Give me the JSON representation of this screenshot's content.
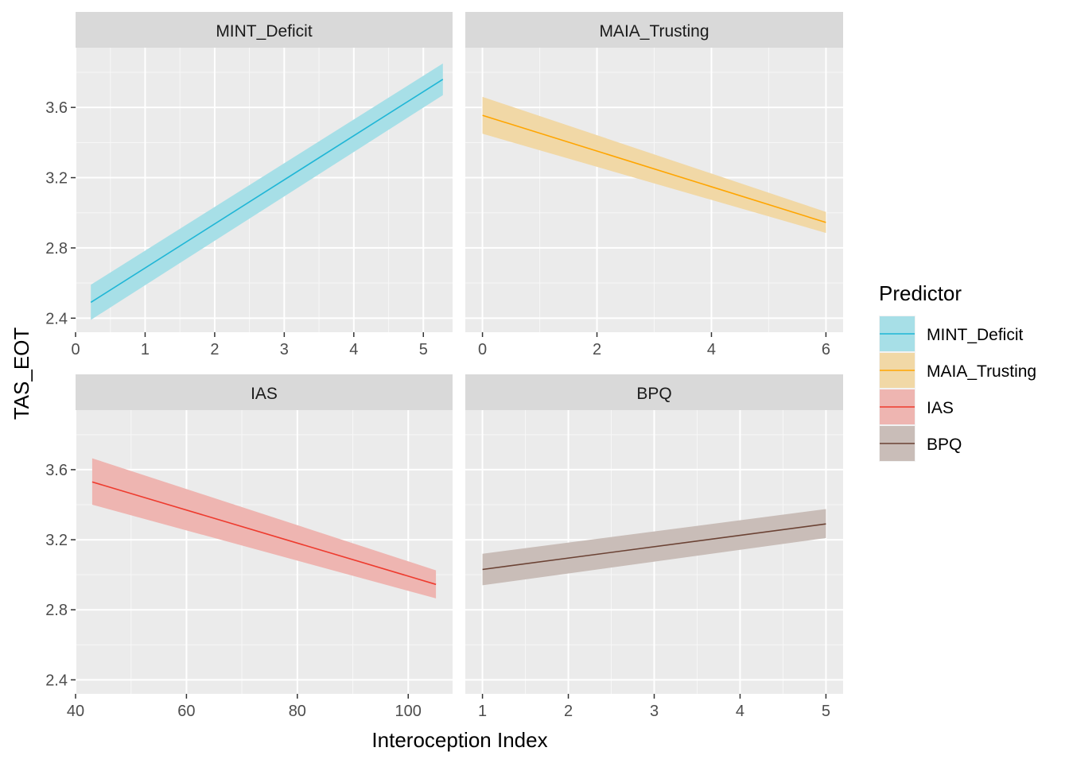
{
  "chart_data": {
    "type": "line",
    "xlabel": "Interoception Index",
    "ylabel": "TAS_EOT",
    "legend": {
      "title": "Predictor",
      "position": "right",
      "entries": [
        {
          "label": "MINT_Deficit",
          "line_color": "#1FB6D6",
          "fill_color": "#A7DFE7"
        },
        {
          "label": "MAIA_Trusting",
          "line_color": "#FFA500",
          "fill_color": "#F1D8A6"
        },
        {
          "label": "IAS",
          "line_color": "#EE3B2E",
          "fill_color": "#EEB5B1"
        },
        {
          "label": "BPQ",
          "line_color": "#6B4234",
          "fill_color": "#C9BDB8"
        }
      ]
    },
    "grid": true,
    "shared_y": {
      "ylim": [
        2.32,
        3.94
      ],
      "ticks": [
        "2.4",
        "2.8",
        "3.2",
        "3.6"
      ],
      "tick_values": [
        2.4,
        2.8,
        3.2,
        3.6
      ]
    },
    "panels": [
      {
        "strip": "MINT_Deficit",
        "color_index": 0,
        "xlim": [
          0,
          5.42
        ],
        "x_ticks": [
          0,
          1,
          2,
          3,
          4,
          5
        ],
        "x_tick_labels": [
          "0",
          "1",
          "2",
          "3",
          "4",
          "5"
        ],
        "x": [
          0.22,
          5.28
        ],
        "y": [
          2.49,
          3.76
        ],
        "ci_lower": [
          2.39,
          3.67
        ],
        "ci_upper": [
          2.59,
          3.85
        ]
      },
      {
        "strip": "MAIA_Trusting",
        "color_index": 1,
        "xlim": [
          -0.3,
          6.3
        ],
        "x_ticks": [
          0,
          2,
          4,
          6
        ],
        "x_tick_labels": [
          "0",
          "2",
          "4",
          "6"
        ],
        "x": [
          0,
          6
        ],
        "y": [
          3.555,
          2.945
        ],
        "ci_lower": [
          3.45,
          2.885
        ],
        "ci_upper": [
          3.66,
          3.005
        ]
      },
      {
        "strip": "IAS",
        "color_index": 2,
        "xlim": [
          40,
          108
        ],
        "x_ticks": [
          40,
          60,
          80,
          100
        ],
        "x_tick_labels": [
          "40",
          "60",
          "80",
          "100"
        ],
        "x": [
          43,
          105
        ],
        "y": [
          3.53,
          2.945
        ],
        "ci_lower": [
          3.4,
          2.865
        ],
        "ci_upper": [
          3.665,
          3.025
        ]
      },
      {
        "strip": "BPQ",
        "color_index": 3,
        "xlim": [
          0.8,
          5.2
        ],
        "x_ticks": [
          1,
          2,
          3,
          4,
          5
        ],
        "x_tick_labels": [
          "1",
          "2",
          "3",
          "4",
          "5"
        ],
        "x": [
          1,
          5
        ],
        "y": [
          3.03,
          3.29
        ],
        "ci_lower": [
          2.94,
          3.21
        ],
        "ci_upper": [
          3.12,
          3.375
        ]
      }
    ]
  }
}
